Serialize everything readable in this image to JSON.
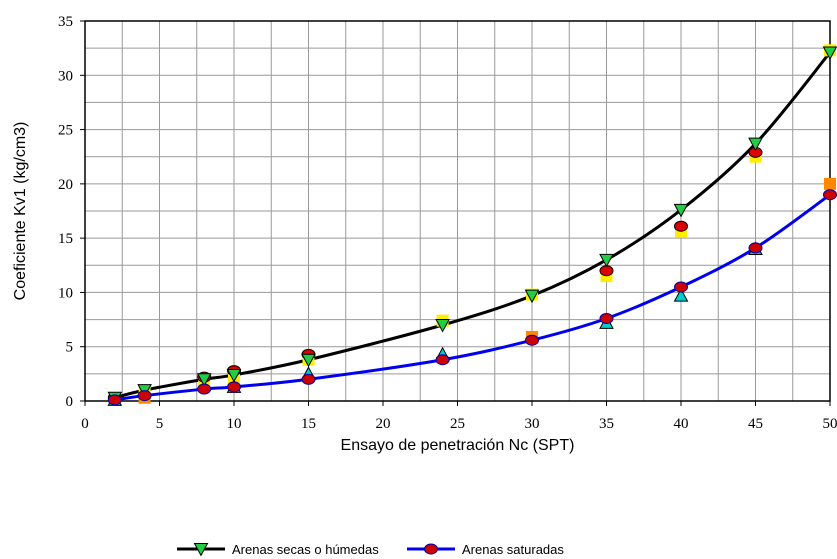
{
  "chart_data": {
    "type": "scatter",
    "title": "",
    "xlabel": "Ensayo de penetración Nc (SPT)",
    "ylabel": "Coeficiente Kv1   (kg/cm3)",
    "xlim": [
      0,
      50
    ],
    "ylim": [
      0,
      35
    ],
    "xticks": [
      0,
      5,
      10,
      15,
      20,
      25,
      30,
      35,
      40,
      45,
      50
    ],
    "yticks": [
      0,
      5,
      10,
      15,
      20,
      25,
      30,
      35
    ],
    "grid": true,
    "legend_position": "bottom",
    "series": [
      {
        "name": "Arenas secas o húmedas",
        "kind": "line-with-markers",
        "color": "#000000",
        "marker": "triangle-down",
        "marker_color": "#22cc44",
        "x": [
          2,
          4,
          8,
          10,
          15,
          24,
          30,
          35,
          40,
          45,
          50
        ],
        "y": [
          0.3,
          1.0,
          2.0,
          2.4,
          3.8,
          7.0,
          9.7,
          13.0,
          17.6,
          23.7,
          32.1
        ]
      },
      {
        "name": "Arenas saturadas",
        "kind": "line-with-markers",
        "color": "#0000ee",
        "marker": "circle",
        "marker_color": "#cc0000",
        "marker_edge": "#0000aa",
        "x": [
          2,
          4,
          8,
          10,
          15,
          24,
          30,
          35,
          40,
          45,
          50
        ],
        "y": [
          0.1,
          0.5,
          1.1,
          1.3,
          2.0,
          3.8,
          5.6,
          7.6,
          10.5,
          14.1,
          19.0
        ]
      },
      {
        "kind": "markers",
        "marker": "square",
        "marker_color": "#ffee00",
        "x": [
          4,
          8,
          10,
          15,
          24,
          30,
          35,
          40,
          45,
          50
        ],
        "y": [
          0.9,
          1.7,
          2.1,
          3.8,
          7.4,
          9.8,
          11.5,
          15.6,
          22.5,
          32.3
        ]
      },
      {
        "kind": "markers",
        "marker": "circle",
        "marker_color": "#dd0000",
        "x": [
          2,
          8,
          10,
          15,
          35,
          40,
          45
        ],
        "y": [
          0.3,
          2.2,
          2.8,
          4.3,
          12.0,
          16.1,
          22.9
        ]
      },
      {
        "kind": "markers",
        "marker": "square",
        "marker_color": "#ff8800",
        "x": [
          4,
          30,
          50
        ],
        "y": [
          0.3,
          5.9,
          20.0
        ]
      },
      {
        "kind": "markers",
        "marker": "triangle-up",
        "marker_color": "#00cccc",
        "x": [
          2,
          10,
          15,
          24,
          35,
          40,
          45
        ],
        "y": [
          0.1,
          1.3,
          2.5,
          4.3,
          7.2,
          9.7,
          14.0
        ]
      }
    ]
  }
}
